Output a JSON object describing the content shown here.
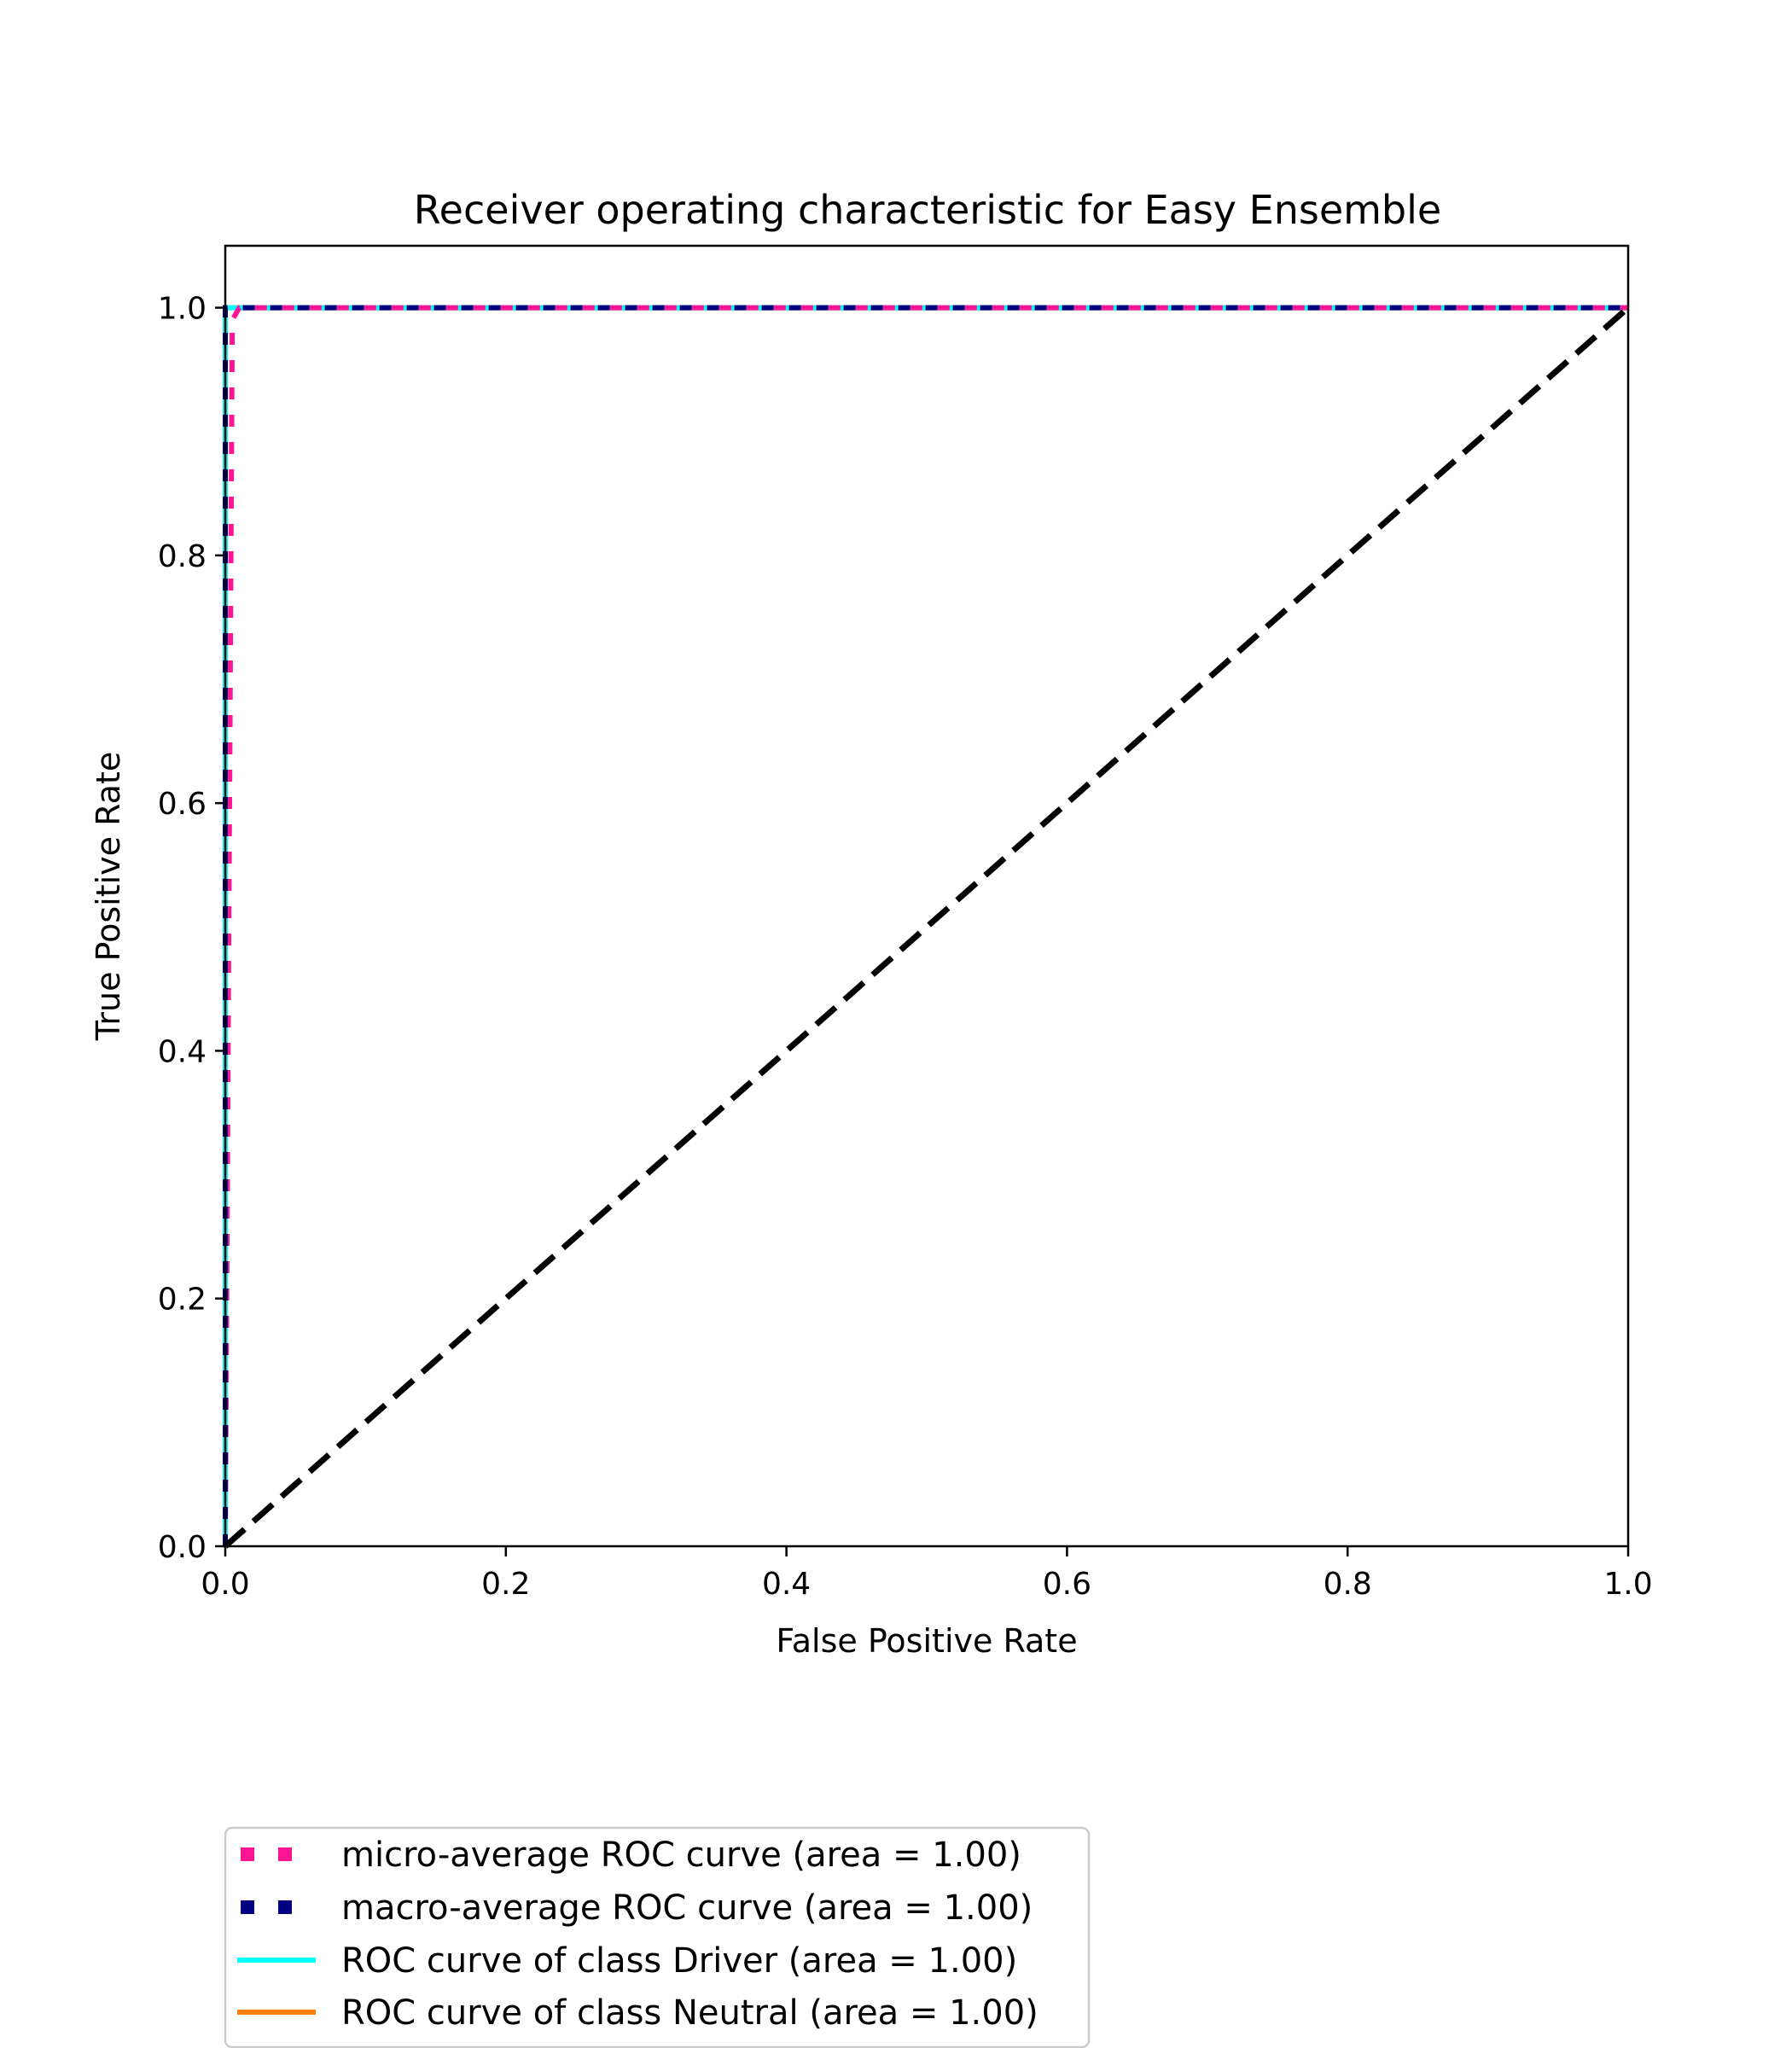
{
  "chart_data": {
    "type": "line",
    "title": "Receiver operating characteristic for Easy Ensemble",
    "xlabel": "False Positive Rate",
    "ylabel": "True Positive Rate",
    "xlim": [
      0.0,
      1.0
    ],
    "ylim": [
      0.0,
      1.05
    ],
    "xticks": [
      "0.0",
      "0.2",
      "0.4",
      "0.6",
      "0.8",
      "1.0"
    ],
    "yticks": [
      "0.0",
      "0.2",
      "0.4",
      "0.6",
      "0.8",
      "1.0"
    ],
    "grid": false,
    "legend_position": "bottom-left",
    "series": [
      {
        "name": "micro-average ROC curve (area = 1.00)",
        "color": "#ff1493",
        "style": "dotted",
        "x": [
          0.0,
          0.005,
          0.01,
          1.0
        ],
        "y": [
          0.0,
          0.99,
          1.0,
          1.0
        ]
      },
      {
        "name": "macro-average ROC curve (area = 1.00)",
        "color": "#000080",
        "style": "dotted",
        "x": [
          0.0,
          0.0,
          1.0
        ],
        "y": [
          0.0,
          1.0,
          1.0
        ]
      },
      {
        "name": "ROC curve of class Driver (area = 1.00)",
        "color": "#00ffff",
        "style": "solid",
        "x": [
          0.0,
          0.0,
          1.0
        ],
        "y": [
          0.0,
          1.0,
          1.0
        ]
      },
      {
        "name": "ROC curve of class Neutral (area = 1.00)",
        "color": "#ff7f0e",
        "style": "solid",
        "x": [
          0.0,
          0.0,
          1.0
        ],
        "y": [
          0.0,
          1.0,
          1.0
        ]
      }
    ],
    "reference_line": {
      "color": "#000000",
      "style": "dashed",
      "x": [
        0.0,
        1.0
      ],
      "y": [
        0.0,
        1.0
      ]
    }
  }
}
